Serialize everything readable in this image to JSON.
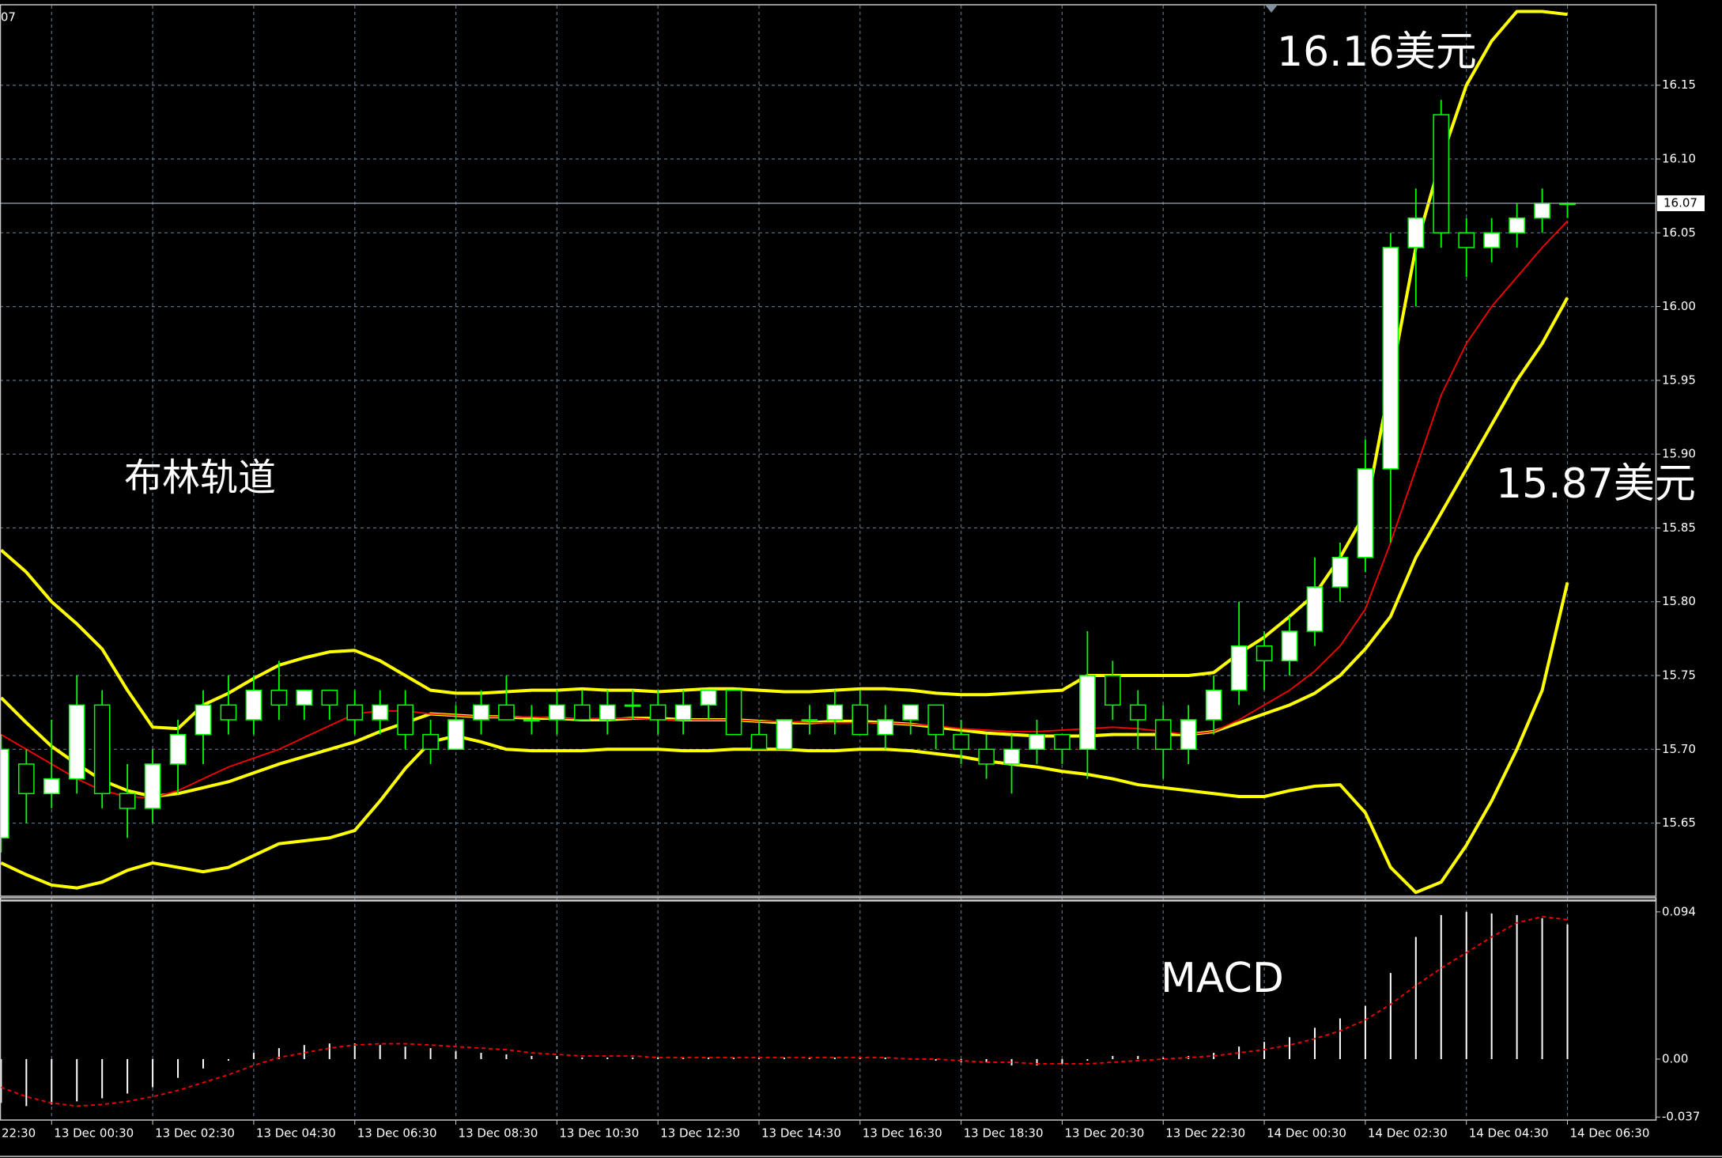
{
  "chart_data": [
    {
      "type": "candlestick",
      "x": [
        2,
        3,
        4,
        5,
        6,
        7,
        8,
        9,
        10,
        11,
        12,
        13,
        14,
        15,
        16,
        17,
        18,
        19,
        20,
        21,
        22,
        23,
        24,
        25,
        26,
        27,
        28,
        29,
        30,
        31,
        32,
        33,
        34,
        35,
        36,
        37,
        38,
        39,
        40,
        41,
        42,
        43,
        44,
        45,
        46,
        47,
        48,
        49,
        50,
        51,
        52,
        53,
        54,
        55,
        56,
        57,
        58,
        59,
        60,
        61,
        62,
        63,
        64
      ],
      "open": [
        15.64,
        15.69,
        15.67,
        15.68,
        15.73,
        15.67,
        15.66,
        15.69,
        15.71,
        15.73,
        15.72,
        15.74,
        15.73,
        15.74,
        15.73,
        15.72,
        15.73,
        15.71,
        15.7,
        15.72,
        15.73,
        15.72,
        15.72,
        15.73,
        15.72,
        15.73,
        15.73,
        15.72,
        15.73,
        15.74,
        15.71,
        15.7,
        15.72,
        15.72,
        15.73,
        15.71,
        15.72,
        15.73,
        15.71,
        15.7,
        15.69,
        15.7,
        15.71,
        15.7,
        15.75,
        15.73,
        15.72,
        15.7,
        15.72,
        15.74,
        15.77,
        15.76,
        15.78,
        15.81,
        15.83,
        15.89,
        16.04,
        16.13,
        16.05,
        16.04,
        16.05,
        16.06,
        16.07
      ],
      "high": [
        15.71,
        15.7,
        15.72,
        15.75,
        15.74,
        15.69,
        15.7,
        15.72,
        15.74,
        15.75,
        15.75,
        15.76,
        15.74,
        15.74,
        15.74,
        15.74,
        15.74,
        15.72,
        15.73,
        15.74,
        15.75,
        15.73,
        15.74,
        15.74,
        15.74,
        15.74,
        15.74,
        15.74,
        15.74,
        15.74,
        15.72,
        15.72,
        15.73,
        15.74,
        15.74,
        15.73,
        15.73,
        15.73,
        15.72,
        15.71,
        15.71,
        15.72,
        15.71,
        15.78,
        15.76,
        15.74,
        15.73,
        15.73,
        15.75,
        15.8,
        15.78,
        15.79,
        15.83,
        15.84,
        15.91,
        16.05,
        16.08,
        16.14,
        16.06,
        16.06,
        16.07,
        16.08,
        16.07
      ],
      "low": [
        15.63,
        15.65,
        15.66,
        15.67,
        15.66,
        15.64,
        15.65,
        15.67,
        15.69,
        15.71,
        15.71,
        15.72,
        15.72,
        15.72,
        15.71,
        15.71,
        15.7,
        15.69,
        15.7,
        15.71,
        15.72,
        15.71,
        15.71,
        15.72,
        15.71,
        15.72,
        15.71,
        15.71,
        15.72,
        15.71,
        15.7,
        15.7,
        15.71,
        15.71,
        15.71,
        15.7,
        15.71,
        15.7,
        15.69,
        15.68,
        15.67,
        15.69,
        15.69,
        15.68,
        15.72,
        15.7,
        15.68,
        15.69,
        15.71,
        15.73,
        15.74,
        15.75,
        15.77,
        15.8,
        15.82,
        15.84,
        16.0,
        16.04,
        16.02,
        16.03,
        16.04,
        16.05,
        16.06
      ],
      "close": [
        15.7,
        15.67,
        15.68,
        15.73,
        15.67,
        15.66,
        15.69,
        15.71,
        15.73,
        15.72,
        15.74,
        15.73,
        15.74,
        15.73,
        15.72,
        15.73,
        15.71,
        15.7,
        15.72,
        15.73,
        15.72,
        15.72,
        15.73,
        15.72,
        15.73,
        15.73,
        15.72,
        15.73,
        15.74,
        15.71,
        15.7,
        15.72,
        15.72,
        15.73,
        15.71,
        15.72,
        15.73,
        15.71,
        15.7,
        15.69,
        15.7,
        15.71,
        15.7,
        15.75,
        15.73,
        15.72,
        15.7,
        15.72,
        15.74,
        15.77,
        15.76,
        15.78,
        15.81,
        15.83,
        15.89,
        16.04,
        16.06,
        16.05,
        16.04,
        16.05,
        16.06,
        16.07,
        16.07
      ],
      "candle_colors": {
        "up": "#ffffff",
        "down": "#000000",
        "wick": "#00ff00"
      },
      "lines": [
        {
          "color": "#ffff00",
          "values": [
            15.835,
            15.82,
            15.8,
            15.785,
            15.768,
            15.74,
            15.715,
            15.714,
            15.73,
            15.738,
            15.748,
            15.757,
            15.762,
            15.766,
            15.767,
            15.76,
            15.75,
            15.74,
            15.738,
            15.738,
            15.739,
            15.74,
            15.74,
            15.741,
            15.74,
            15.74,
            15.739,
            15.74,
            15.741,
            15.741,
            15.74,
            15.739,
            15.739,
            15.74,
            15.741,
            15.741,
            15.74,
            15.738,
            15.737,
            15.737,
            15.738,
            15.739,
            15.74,
            15.75,
            15.75,
            15.75,
            15.75,
            15.75,
            15.752,
            15.765,
            15.776,
            15.79,
            15.805,
            15.83,
            15.86,
            15.95,
            16.04,
            16.1,
            16.15,
            16.18,
            16.2,
            16.2,
            16.198
          ]
        },
        {
          "color": "#ffff00",
          "values": [
            15.735,
            15.718,
            15.702,
            15.69,
            15.679,
            15.672,
            15.668,
            15.67,
            15.674,
            15.678,
            15.684,
            15.69,
            15.695,
            15.7,
            15.705,
            15.712,
            15.718,
            15.724,
            15.723,
            15.722,
            15.722,
            15.721,
            15.721,
            15.72,
            15.72,
            15.721,
            15.721,
            15.72,
            15.72,
            15.72,
            15.719,
            15.718,
            15.718,
            15.719,
            15.719,
            15.718,
            15.717,
            15.715,
            15.713,
            15.711,
            15.71,
            15.709,
            15.709,
            15.709,
            15.71,
            15.71,
            15.71,
            15.71,
            15.712,
            15.718,
            15.724,
            15.73,
            15.738,
            15.75,
            15.768,
            15.79,
            15.83,
            15.86,
            15.89,
            15.92,
            15.95,
            15.975,
            16.006
          ]
        },
        {
          "color": "#ffff00",
          "values": [
            15.623,
            15.615,
            15.608,
            15.606,
            15.61,
            15.618,
            15.623,
            15.62,
            15.617,
            15.62,
            15.628,
            15.636,
            15.638,
            15.64,
            15.645,
            15.665,
            15.687,
            15.705,
            15.709,
            15.705,
            15.7,
            15.699,
            15.699,
            15.699,
            15.7,
            15.7,
            15.7,
            15.699,
            15.699,
            15.7,
            15.7,
            15.7,
            15.699,
            15.699,
            15.7,
            15.7,
            15.699,
            15.697,
            15.695,
            15.692,
            15.69,
            15.688,
            15.685,
            15.683,
            15.68,
            15.676,
            15.674,
            15.672,
            15.67,
            15.668,
            15.668,
            15.672,
            15.675,
            15.676,
            15.657,
            15.62,
            15.603,
            15.61,
            15.635,
            15.665,
            15.7,
            15.74,
            15.813
          ]
        },
        {
          "color": "#ff0000",
          "values": [
            15.71,
            15.7,
            15.69,
            15.68,
            15.672,
            15.668,
            15.667,
            15.672,
            15.68,
            15.688,
            15.694,
            15.7,
            15.708,
            15.716,
            15.724,
            15.726,
            15.726,
            15.724,
            15.723,
            15.722,
            15.722,
            15.722,
            15.721,
            15.721,
            15.721,
            15.721,
            15.72,
            15.72,
            15.72,
            15.72,
            15.719,
            15.719,
            15.718,
            15.718,
            15.718,
            15.718,
            15.717,
            15.716,
            15.714,
            15.713,
            15.712,
            15.712,
            15.713,
            15.714,
            15.715,
            15.714,
            15.712,
            15.71,
            15.712,
            15.72,
            15.73,
            15.74,
            15.753,
            15.77,
            15.795,
            15.84,
            15.89,
            15.94,
            15.975,
            16.0,
            16.02,
            16.04,
            16.058
          ]
        }
      ],
      "xlim": [
        1.957,
        67.52
      ],
      "ylim": [
        15.601,
        16.204
      ],
      "yticks": [
        15.65,
        {
          "value": 15.7,
          "label": "15.70"
        },
        15.75,
        {
          "value": 15.8,
          "label": "15.80"
        },
        15.85,
        {
          "value": 15.9,
          "label": "15.90"
        },
        15.95,
        {
          "value": 16.0,
          "label": "16.00"
        },
        16.05,
        {
          "value": 16.1,
          "label": "16.10"
        },
        16.15
      ],
      "grid": true,
      "current_price": 16.07,
      "annotations": [
        {
          "text": "16.16美元"
        },
        {
          "text": "15.87美元"
        },
        {
          "text": "布林轨道"
        }
      ]
    },
    {
      "type": "macd",
      "x": [
        2,
        3,
        4,
        5,
        6,
        7,
        8,
        9,
        10,
        11,
        12,
        13,
        14,
        15,
        16,
        17,
        18,
        19,
        20,
        21,
        22,
        23,
        24,
        25,
        26,
        27,
        28,
        29,
        30,
        31,
        32,
        33,
        34,
        35,
        36,
        37,
        38,
        39,
        40,
        41,
        42,
        43,
        44,
        45,
        46,
        47,
        48,
        49,
        50,
        51,
        52,
        53,
        54,
        55,
        56,
        57,
        58,
        59,
        60,
        61,
        62,
        63,
        64
      ],
      "histogram": {
        "color": "#ffffff",
        "values": [
          -0.028,
          -0.03,
          -0.029,
          -0.027,
          -0.025,
          -0.022,
          -0.018,
          -0.012,
          -0.006,
          -0.001,
          0.004,
          0.007,
          0.009,
          0.01,
          0.01,
          0.009,
          0.008,
          0.007,
          0.005,
          0.004,
          0.003,
          0.002,
          0.002,
          0.001,
          0.001,
          0.001,
          0.001,
          0.001,
          0.001,
          0.001,
          0.001,
          0.001,
          0.001,
          0.001,
          0.001,
          0.001,
          0,
          -0.001,
          -0.002,
          -0.002,
          -0.004,
          -0.004,
          -0.003,
          -0.001,
          0.002,
          0.002,
          0.001,
          0.002,
          0.004,
          0.008,
          0.011,
          0.014,
          0.02,
          0.026,
          0.034,
          0.055,
          0.078,
          0.092,
          0.094,
          0.093,
          0.092,
          0.09,
          0.086
        ]
      },
      "signal": {
        "color": "#ff0000",
        "values": [
          -0.018,
          -0.024,
          -0.028,
          -0.03,
          -0.029,
          -0.027,
          -0.024,
          -0.02,
          -0.015,
          -0.01,
          -0.004,
          0.001,
          0.004,
          0.007,
          0.009,
          0.0098,
          0.0098,
          0.009,
          0.008,
          0.007,
          0.006,
          0.004,
          0.003,
          0.002,
          0.002,
          0.002,
          0.001,
          0.001,
          0.001,
          0.001,
          0.001,
          0.001,
          0.001,
          0.001,
          0.001,
          0.001,
          0,
          0,
          -0.001,
          -0.002,
          -0.002,
          -0.003,
          -0.003,
          -0.003,
          -0.002,
          -0.001,
          0,
          0.001,
          0.002,
          0.004,
          0.006,
          0.009,
          0.013,
          0.018,
          0.025,
          0.035,
          0.047,
          0.058,
          0.068,
          0.078,
          0.087,
          0.091,
          0.089
        ]
      },
      "xlim": [
        1.957,
        67.52
      ],
      "ylim": [
        -0.0379,
        0.101
      ],
      "yticks": [
        0.094,
        {
          "value": 0,
          "label": "0.00"
        },
        -0.037
      ],
      "xticks": [
        {
          "value": 0,
          "label": "22:30"
        },
        {
          "value": 4,
          "label": "13 Dec 00:30"
        },
        {
          "value": 8,
          "label": "13 Dec 02:30"
        },
        {
          "value": 12,
          "label": "13 Dec 04:30"
        },
        {
          "value": 16,
          "label": "13 Dec 06:30"
        },
        {
          "value": 20,
          "label": "13 Dec 08:30"
        },
        {
          "value": 24,
          "label": "13 Dec 10:30"
        },
        {
          "value": 28,
          "label": "13 Dec 12:30"
        },
        {
          "value": 32,
          "label": "13 Dec 14:30"
        },
        {
          "value": 36,
          "label": "13 Dec 16:30"
        },
        {
          "value": 40,
          "label": "13 Dec 18:30"
        },
        {
          "value": 44,
          "label": "13 Dec 20:30"
        },
        {
          "value": 48,
          "label": "13 Dec 22:30"
        },
        {
          "value": 52,
          "label": "14 Dec 00:30"
        },
        {
          "value": 56,
          "label": "14 Dec 02:30"
        },
        {
          "value": 60,
          "label": "14 Dec 04:30"
        },
        {
          "value": 64,
          "label": "14 Dec 06:30"
        }
      ],
      "grid": true,
      "annotations": [
        {
          "text": "MACD"
        }
      ]
    }
  ]
}
